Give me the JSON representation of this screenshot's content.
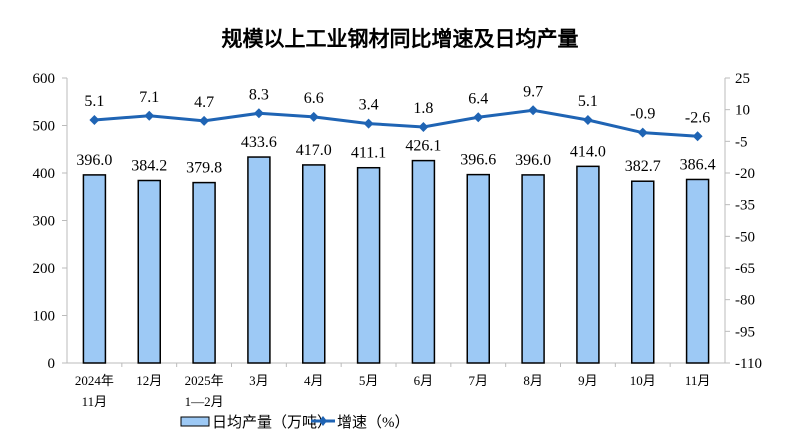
{
  "chart_data": {
    "type": "bar+line",
    "title": "规模以上工业钢材同比增速及日均产量",
    "categories": [
      "2024年\n11月",
      "12月",
      "2025年\n1—2月",
      "3月",
      "4月",
      "5月",
      "6月",
      "7月",
      "8月",
      "9月",
      "10月",
      "11月"
    ],
    "series": [
      {
        "name": "日均产量（万吨）",
        "type": "bar",
        "axis": "left",
        "values": [
          396.0,
          384.2,
          379.8,
          433.6,
          417.0,
          411.1,
          426.1,
          396.6,
          396.0,
          414.0,
          382.7,
          386.4
        ]
      },
      {
        "name": "增速（%）",
        "type": "line",
        "axis": "right",
        "values": [
          5.1,
          7.1,
          4.7,
          8.3,
          6.6,
          3.4,
          1.8,
          6.4,
          9.7,
          5.1,
          -0.9,
          -2.6
        ]
      }
    ],
    "left_axis": {
      "ylim": [
        0,
        600
      ],
      "ticks": [
        0,
        100,
        200,
        300,
        400,
        500,
        600
      ]
    },
    "right_axis": {
      "ylim": [
        -110,
        25
      ],
      "ticks": [
        25,
        10,
        -5,
        -20,
        -35,
        -50,
        -65,
        -80,
        -95,
        -110
      ]
    },
    "grid": false,
    "legend_placement": "bottom",
    "colors": {
      "bar_fill": "#9DC9F5",
      "bar_stroke": "#000000",
      "line": "#1F64B4"
    }
  }
}
